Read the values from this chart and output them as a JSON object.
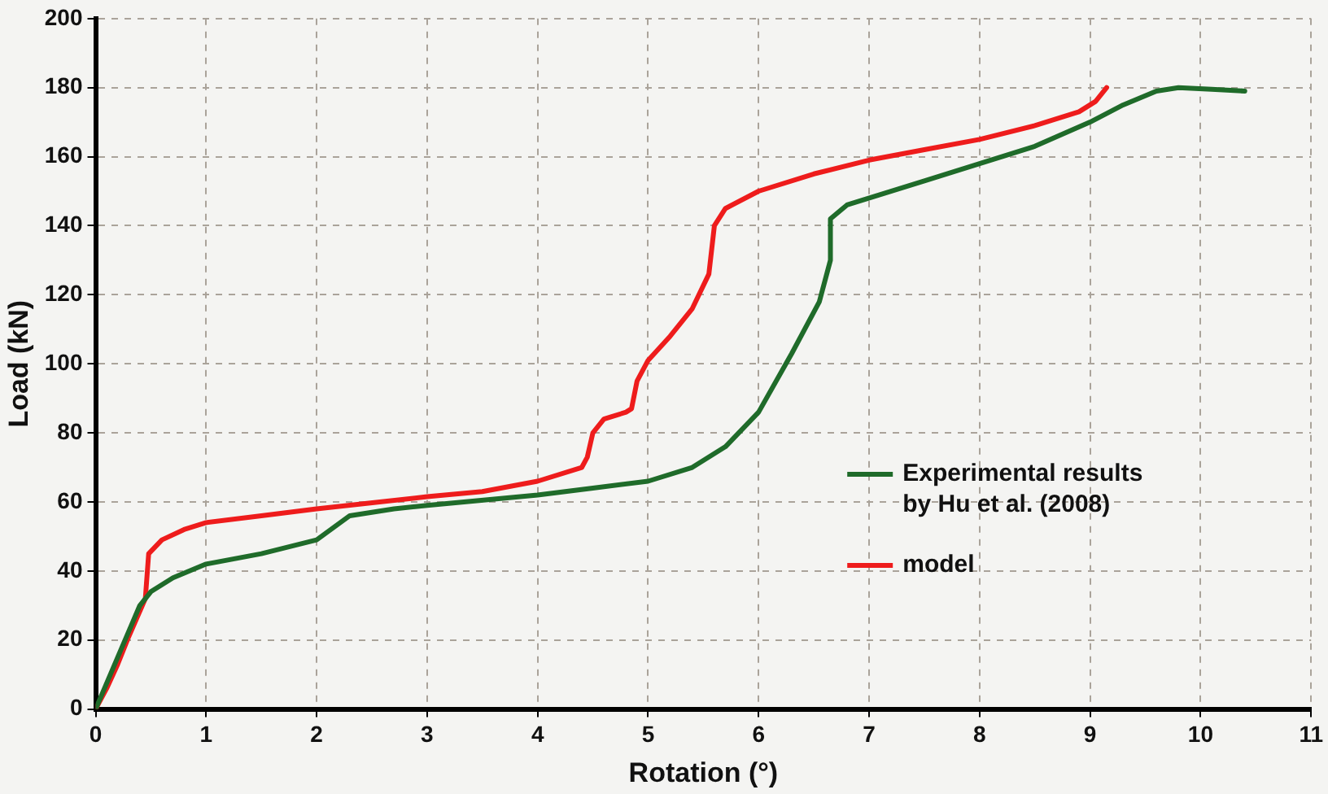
{
  "chart_data": {
    "type": "line",
    "xlabel": "Rotation (°)",
    "ylabel": "Load (kN)",
    "xlim": [
      0,
      11
    ],
    "xticks": [
      0,
      1,
      2,
      3,
      4,
      5,
      6,
      7,
      8,
      9,
      10,
      11
    ],
    "ylim": [
      0,
      200
    ],
    "yticks": [
      0,
      20,
      40,
      60,
      80,
      100,
      120,
      140,
      160,
      180,
      200
    ],
    "grid": true,
    "legend": "right",
    "marker": "none",
    "line_style": "solid",
    "series": [
      {
        "name": "Experimental results by Hu et al. (2008)",
        "color": "#1f6b2a",
        "x": [
          0,
          0.2,
          0.4,
          0.5,
          0.7,
          1,
          1.5,
          2,
          2.3,
          2.7,
          3,
          4,
          4.5,
          5,
          5.4,
          5.7,
          6,
          6.3,
          6.55,
          6.65,
          6.65,
          6.8,
          7.5,
          8,
          8.5,
          9,
          9.3,
          9.6,
          9.8,
          10.1,
          10.4
        ],
        "values": [
          0,
          15,
          30,
          34,
          38,
          42,
          45,
          49,
          56,
          58,
          59,
          62,
          64,
          66,
          70,
          76,
          86,
          103,
          118,
          130,
          142,
          146,
          153,
          158,
          163,
          170,
          175,
          179,
          180,
          179.5,
          179
        ]
      },
      {
        "name": "model",
        "color": "#ee1c1c",
        "x": [
          0,
          0.05,
          0.1,
          0.2,
          0.3,
          0.45,
          0.48,
          0.6,
          0.8,
          1,
          1.5,
          2,
          3,
          3.5,
          4,
          4.4,
          4.45,
          4.5,
          4.6,
          4.8,
          4.85,
          4.9,
          5,
          5.2,
          5.4,
          5.55,
          5.6,
          5.7,
          6,
          6.5,
          7,
          7.5,
          8,
          8.5,
          8.9,
          9.05,
          9.15
        ],
        "values": [
          0,
          3,
          6,
          13,
          21,
          32,
          45,
          49,
          52,
          54,
          56,
          58,
          61.5,
          63,
          66,
          70,
          73,
          80,
          84,
          86,
          87,
          95,
          101,
          108,
          116,
          126,
          140,
          145,
          150,
          155,
          159,
          162,
          165,
          169,
          173,
          176,
          180
        ]
      }
    ]
  }
}
